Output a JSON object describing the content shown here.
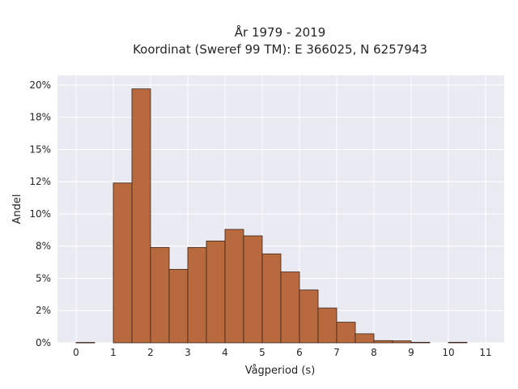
{
  "chart_data": {
    "type": "bar",
    "title_lines": [
      "År 1979 - 2019",
      "Koordinat (Sweref 99 TM): E 366025, N 6257943"
    ],
    "xlabel": "Vågperiod (s)",
    "ylabel": "Andel",
    "xlim": [
      -0.5,
      11.5
    ],
    "ylim": [
      0,
      0.2075
    ],
    "x_ticks": [
      0,
      1,
      2,
      3,
      4,
      5,
      6,
      7,
      8,
      9,
      10,
      11
    ],
    "y_ticks": [
      {
        "value": 0.0,
        "label": "0%"
      },
      {
        "value": 0.025,
        "label": "2%"
      },
      {
        "value": 0.05,
        "label": "5%"
      },
      {
        "value": 0.075,
        "label": "8%"
      },
      {
        "value": 0.1,
        "label": "10%"
      },
      {
        "value": 0.125,
        "label": "12%"
      },
      {
        "value": 0.15,
        "label": "15%"
      },
      {
        "value": 0.175,
        "label": "18%"
      },
      {
        "value": 0.2,
        "label": "20%"
      }
    ],
    "bins": [
      {
        "start": 0.0,
        "end": 0.5,
        "value": 0.0003
      },
      {
        "start": 1.0,
        "end": 1.5,
        "value": 0.124
      },
      {
        "start": 1.5,
        "end": 2.0,
        "value": 0.197
      },
      {
        "start": 2.0,
        "end": 2.5,
        "value": 0.074
      },
      {
        "start": 2.5,
        "end": 3.0,
        "value": 0.057
      },
      {
        "start": 3.0,
        "end": 3.5,
        "value": 0.074
      },
      {
        "start": 3.5,
        "end": 4.0,
        "value": 0.079
      },
      {
        "start": 4.0,
        "end": 4.5,
        "value": 0.088
      },
      {
        "start": 4.5,
        "end": 5.0,
        "value": 0.083
      },
      {
        "start": 5.0,
        "end": 5.5,
        "value": 0.069
      },
      {
        "start": 5.5,
        "end": 6.0,
        "value": 0.055
      },
      {
        "start": 6.0,
        "end": 6.5,
        "value": 0.041
      },
      {
        "start": 6.5,
        "end": 7.0,
        "value": 0.027
      },
      {
        "start": 7.0,
        "end": 7.5,
        "value": 0.016
      },
      {
        "start": 7.5,
        "end": 8.0,
        "value": 0.007
      },
      {
        "start": 8.0,
        "end": 8.5,
        "value": 0.0017
      },
      {
        "start": 8.5,
        "end": 9.0,
        "value": 0.0015
      },
      {
        "start": 9.0,
        "end": 9.5,
        "value": 0.0004
      },
      {
        "start": 10.0,
        "end": 10.5,
        "value": 0.0004
      }
    ],
    "grid": true,
    "colors": {
      "bar_fill": "#b86a3e",
      "bar_edge": "#3a2418",
      "plot_background": "#eaeaf2",
      "grid": "#ffffff"
    }
  }
}
